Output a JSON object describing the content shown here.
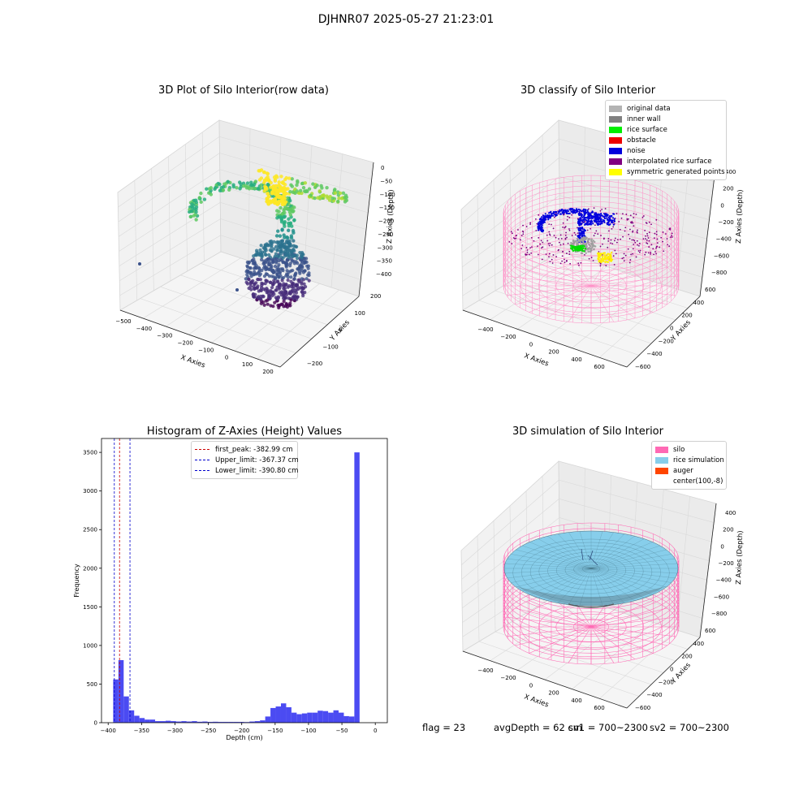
{
  "suptitle": "DJHNR07 2025-05-27 21:23:01",
  "chart_data": [
    {
      "type": "scatter",
      "projection": "3d",
      "title": "3D Plot of Silo Interior(row data)",
      "xlabel": "X Axies",
      "ylabel": "Y Axies",
      "zlabel": "Z Axies (Depth)",
      "xticks": [
        "−500",
        "−400",
        "−300",
        "−200",
        "−100",
        "0",
        "100",
        "200"
      ],
      "yticks": [
        "−200",
        "−100",
        "0",
        "100",
        "200"
      ],
      "zticks": [
        "0",
        "−50",
        "−100",
        "−150",
        "−200",
        "−250",
        "−300",
        "−350",
        "−400"
      ],
      "xlim": [
        -500,
        200
      ],
      "ylim": [
        -200,
        250
      ],
      "zlim": [
        -400,
        0
      ],
      "colormap": "viridis",
      "grid": true
    },
    {
      "type": "scatter",
      "projection": "3d",
      "title": "3D classify of Silo Interior",
      "xlabel": "X Axies",
      "ylabel": "Y Axies",
      "zlabel": "Z Axies (Depth)",
      "xticks": [
        "−400",
        "−200",
        "0",
        "200",
        "400",
        "600"
      ],
      "yticks": [
        "−600",
        "−400",
        "−200",
        "0",
        "200",
        "400",
        "600"
      ],
      "zticks": [
        "400",
        "200",
        "0",
        "−200",
        "−400",
        "−600",
        "−800"
      ],
      "grid": true,
      "legend_position": "top-right",
      "legend": [
        {
          "label": "original data",
          "color": "#b3b3b3"
        },
        {
          "label": "inner wall",
          "color": "#808080"
        },
        {
          "label": "rice surface",
          "color": "#00ee00"
        },
        {
          "label": "obstacle",
          "color": "#ee0000"
        },
        {
          "label": "noise",
          "color": "#0000dd"
        },
        {
          "label": "interpolated rice surface",
          "color": "#800080"
        },
        {
          "label": "symmetric generated points",
          "color": "#ffff00"
        }
      ]
    },
    {
      "type": "bar",
      "title": "Histogram of Z-Axies (Height) Values",
      "xlabel": "Depth (cm)",
      "ylabel": "Frequency",
      "xlim": [
        -410,
        18
      ],
      "ylim": [
        0,
        3680
      ],
      "xticks": [
        -400,
        -350,
        -300,
        -250,
        -200,
        -150,
        -100,
        -50,
        0
      ],
      "yticks": [
        0,
        500,
        1000,
        1500,
        2000,
        2500,
        3000,
        3500
      ],
      "bin_width": 7.85,
      "bin_start": -392.5,
      "values": [
        560,
        810,
        340,
        160,
        90,
        60,
        40,
        40,
        20,
        20,
        25,
        20,
        15,
        20,
        15,
        20,
        12,
        15,
        10,
        12,
        10,
        10,
        10,
        10,
        10,
        8,
        15,
        20,
        30,
        80,
        190,
        210,
        250,
        200,
        130,
        110,
        120,
        130,
        130,
        155,
        150,
        130,
        160,
        130,
        85,
        80,
        3500
      ],
      "bar_color": "#4b4bf2",
      "legend_position": "top-center",
      "vlines": [
        {
          "label": "first_peak: -382.99 cm",
          "x": -382.99,
          "color": "#cc0000"
        },
        {
          "label": "Upper_limit: -367.37 cm",
          "x": -367.37,
          "color": "#0000cc"
        },
        {
          "label": "Lower_limit: -390.80 cm",
          "x": -390.8,
          "color": "#0000cc"
        }
      ]
    },
    {
      "type": "surface",
      "projection": "3d",
      "title": "3D simulation of Silo Interior",
      "xlabel": "X Axies",
      "ylabel": "Y Axies",
      "zlabel": "Z Axies (Depth)",
      "xticks": [
        "−400",
        "−200",
        "0",
        "200",
        "400",
        "600"
      ],
      "yticks": [
        "−600",
        "−400",
        "−200",
        "0",
        "200",
        "400",
        "600"
      ],
      "zticks": [
        "400",
        "200",
        "0",
        "−200",
        "−400",
        "−600",
        "−800"
      ],
      "grid": true,
      "legend_position": "top-right",
      "legend": [
        {
          "label": "silo",
          "color": "#ff69b4"
        },
        {
          "label": "rice simulation",
          "color": "#87ceeb"
        },
        {
          "label": "auger",
          "color": "#ff4500"
        },
        {
          "label": "center(100,-8)",
          "color": "#ffffff"
        }
      ]
    }
  ],
  "footer": {
    "flag": "flag = 23",
    "avg": "avgDepth = 62 cm",
    "sv1": "sv1 = 700~2300",
    "sv2": "sv2 = 700~2300"
  }
}
